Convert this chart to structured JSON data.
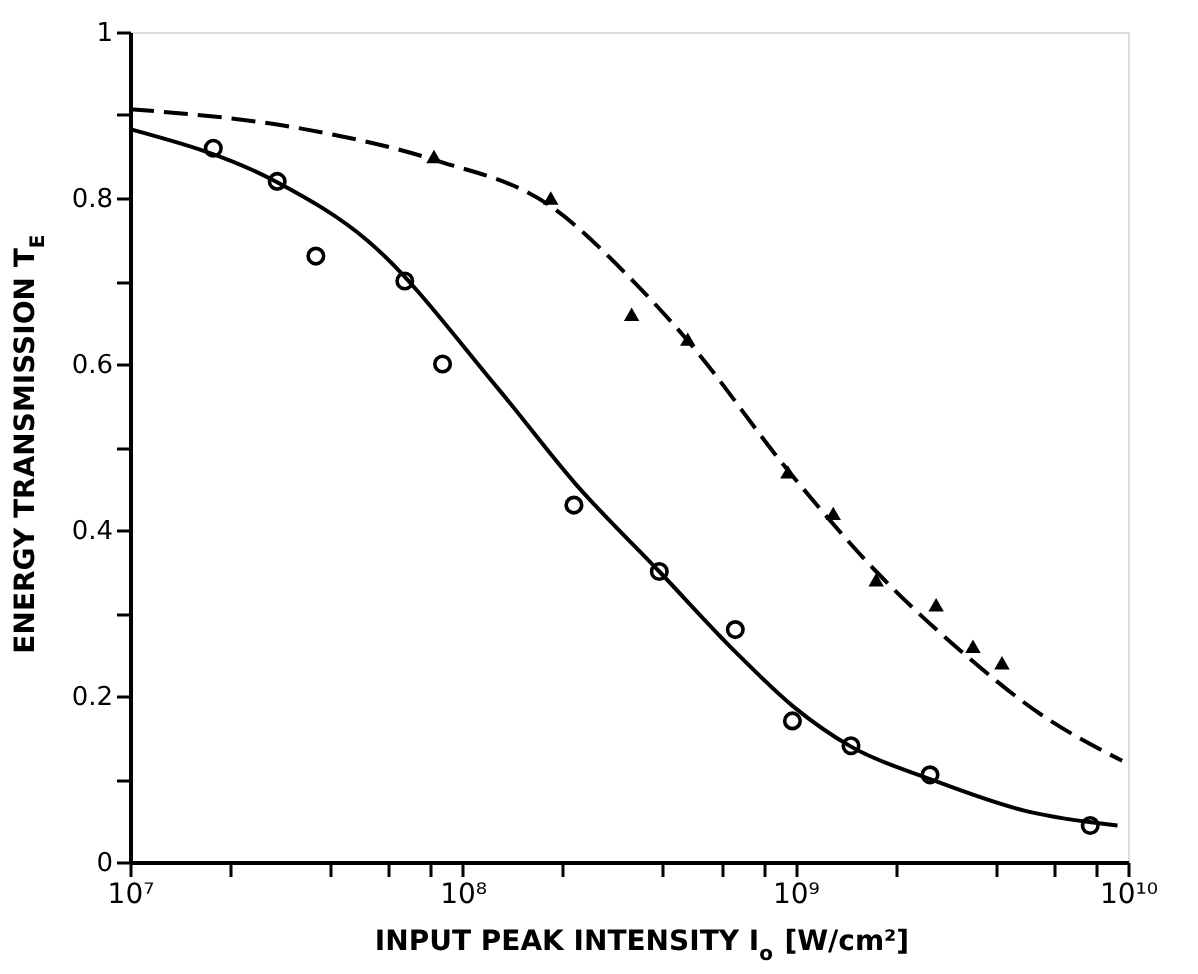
{
  "chart_data": {
    "type": "scatter",
    "xlabel": "INPUT PEAK INTENSITY I$_{o}$ [W/cm²]",
    "ylabel": "ENERGY TRANSMISSION T$_{E}$",
    "log": "x",
    "grid": false,
    "xlim": [
      10000000,
      10000000000
    ],
    "ylim": [
      0,
      1
    ],
    "xticks": [
      {
        "value": 10000000,
        "label": "10⁷"
      },
      {
        "value": 20000000,
        "label": null
      },
      {
        "value": 40000000,
        "label": null
      },
      {
        "value": 60000000,
        "label": null
      },
      {
        "value": 80000000,
        "label": null
      },
      {
        "value": 100000000,
        "label": "10⁸"
      },
      {
        "value": 200000000,
        "label": null
      },
      {
        "value": 400000000,
        "label": null
      },
      {
        "value": 600000000,
        "label": null
      },
      {
        "value": 800000000,
        "label": null
      },
      {
        "value": 1000000000,
        "label": "10⁹"
      },
      {
        "value": 2000000000,
        "label": null
      },
      {
        "value": 4000000000,
        "label": null
      },
      {
        "value": 6000000000,
        "label": null
      },
      {
        "value": 8000000000,
        "label": null
      },
      {
        "value": 10000000000,
        "label": "10¹⁰"
      }
    ],
    "yticks": [
      0,
      {
        "value": 0.1,
        "label": null
      },
      0.2,
      {
        "value": 0.3,
        "label": null
      },
      0.4,
      {
        "value": 0.5,
        "label": null
      },
      0.6,
      {
        "value": 0.7,
        "label": null
      },
      0.8,
      {
        "value": 0.9,
        "label": null
      },
      1
    ],
    "series": [
      {
        "marker": "circle",
        "color": "#000000",
        "x": [
          17800000,
          27700000,
          36200000,
          67000000,
          87000000,
          216000000,
          390000000,
          660000000,
          980000000,
          1470000000,
          2540000000,
          7700000000
        ],
        "values": [
          0.86,
          0.82,
          0.73,
          0.7,
          0.6,
          0.43,
          0.35,
          0.28,
          0.17,
          0.14,
          0.105,
          0.044
        ]
      },
      {
        "marker": "triangle",
        "color": "#000000",
        "x": [
          82000000,
          184000000,
          322000000,
          475000000,
          950000000,
          1300000000,
          1750000000,
          2650000000,
          3420000000,
          4180000000
        ],
        "values": [
          0.85,
          0.8,
          0.66,
          0.63,
          0.47,
          0.42,
          0.34,
          0.31,
          0.26,
          0.24
        ]
      },
      {
        "type": "line",
        "line_style": "solid",
        "color": "#000000",
        "x": [
          10000000,
          27700000,
          52000000,
          128000000,
          219000000,
          390000000,
          665000000,
          995000000,
          1470000000,
          2540000000,
          4980000000,
          9300000000
        ],
        "values": [
          0.883,
          0.819,
          0.748,
          0.57,
          0.455,
          0.35,
          0.252,
          0.186,
          0.139,
          0.1,
          0.061,
          0.044
        ]
      },
      {
        "type": "line",
        "line_style": "dashed",
        "color": "#000000",
        "x": [
          10000000,
          33400000,
          82000000,
          184000000,
          327000000,
          475000000,
          950000000,
          1750000000,
          3190000000,
          5460000000,
          9600000000
        ],
        "values": [
          0.907,
          0.883,
          0.846,
          0.79,
          0.699,
          0.628,
          0.472,
          0.35,
          0.252,
          0.178,
          0.122
        ]
      }
    ]
  }
}
